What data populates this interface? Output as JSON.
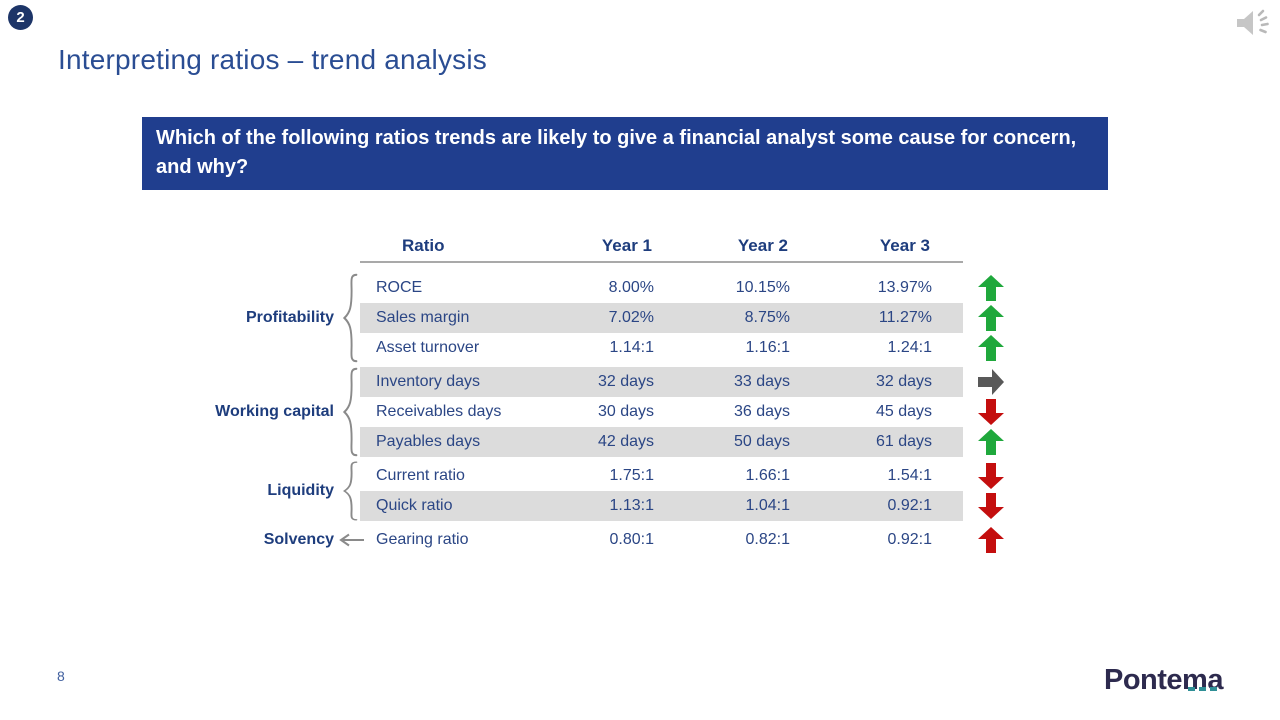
{
  "slide": {
    "badge": "2",
    "title": "Interpreting ratios – trend analysis",
    "page_number": "8",
    "logo_text": "Pontema",
    "audio_icon": "speaker-with-sound-waves"
  },
  "question_banner": {
    "text": "Which of the following ratios trends are likely to give a financial analyst some cause for concern, and why?"
  },
  "table": {
    "headers": [
      "Ratio",
      "Year 1",
      "Year 2",
      "Year 3"
    ],
    "groups": [
      {
        "label": "Profitability",
        "connector": "brace",
        "rows": [
          {
            "ratio": "ROCE",
            "year1": "8.00%",
            "year2": "10.15%",
            "year3": "13.97%",
            "trend": "up-green",
            "striped": false
          },
          {
            "ratio": "Sales margin",
            "year1": "7.02%",
            "year2": "8.75%",
            "year3": "11.27%",
            "trend": "up-green",
            "striped": true
          },
          {
            "ratio": "Asset turnover",
            "year1": "1.14:1",
            "year2": "1.16:1",
            "year3": "1.24:1",
            "trend": "up-green",
            "striped": false
          }
        ]
      },
      {
        "label": "Working capital",
        "connector": "brace",
        "rows": [
          {
            "ratio": "Inventory days",
            "year1": "32 days",
            "year2": "33 days",
            "year3": "32 days",
            "trend": "right-gray",
            "striped": true
          },
          {
            "ratio": "Receivables days",
            "year1": "30 days",
            "year2": "36 days",
            "year3": "45 days",
            "trend": "down-red",
            "striped": false
          },
          {
            "ratio": "Payables days",
            "year1": "42 days",
            "year2": "50 days",
            "year3": "61 days",
            "trend": "up-green",
            "striped": true
          }
        ]
      },
      {
        "label": "Liquidity",
        "connector": "brace",
        "rows": [
          {
            "ratio": "Current ratio",
            "year1": "1.75:1",
            "year2": "1.66:1",
            "year3": "1.54:1",
            "trend": "down-red",
            "striped": false
          },
          {
            "ratio": "Quick ratio",
            "year1": "1.13:1",
            "year2": "1.04:1",
            "year3": "0.92:1",
            "trend": "down-red",
            "striped": true
          }
        ]
      },
      {
        "label": "Solvency",
        "connector": "arrow",
        "rows": [
          {
            "ratio": "Gearing ratio",
            "year1": "0.80:1",
            "year2": "0.82:1",
            "year3": "0.92:1",
            "trend": "up-red",
            "striped": false
          }
        ]
      }
    ]
  },
  "colors": {
    "banner_blue": "#203e8e",
    "title_blue": "#2a4d93",
    "table_text_blue": "#2b4685",
    "header_text_blue": "#1e3d7d",
    "stripe_gray": "#dcdcdc",
    "trend_green": "#1fa83c",
    "trend_red": "#c40e0e",
    "trend_gray": "#595959",
    "brace_gray": "#8a8a8a",
    "logo_navy": "#2d2a4e",
    "logo_teal": "#2f8f96"
  }
}
